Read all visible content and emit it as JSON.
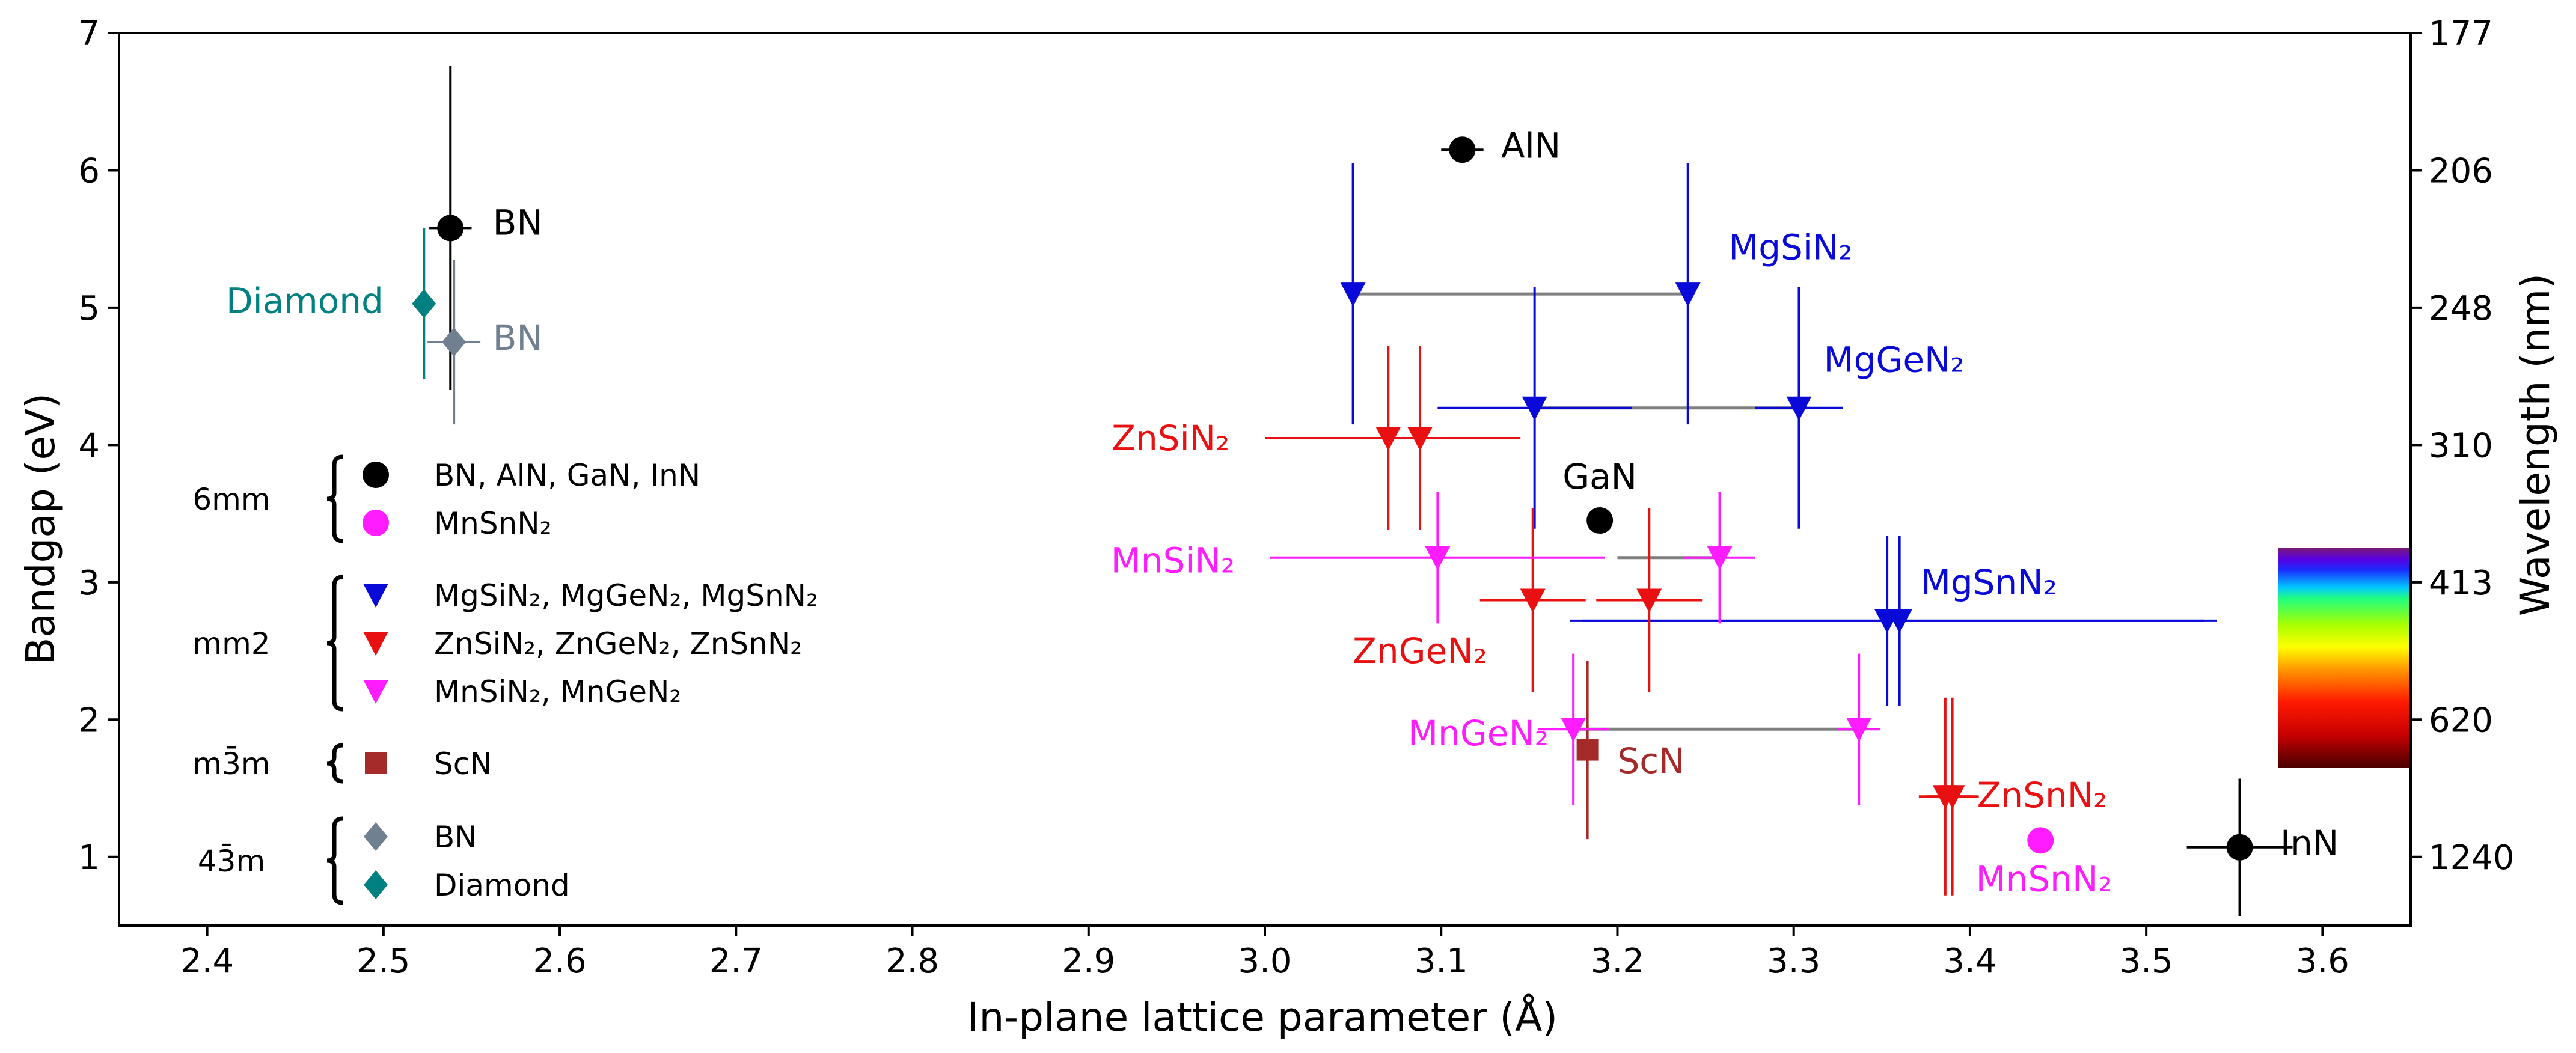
{
  "chart_data": {
    "type": "scatter",
    "xlabel": "In-plane lattice parameter (Å)",
    "ylabel": "Bandgap (eV)",
    "y2label": "Wavelength (nm)",
    "xlim": [
      2.35,
      3.65
    ],
    "ylim": [
      0.5,
      7.0
    ],
    "xticks": [
      "2.4",
      "2.5",
      "2.6",
      "2.7",
      "2.8",
      "2.9",
      "3.0",
      "3.1",
      "3.2",
      "3.3",
      "3.4",
      "3.5",
      "3.6"
    ],
    "yticks": [
      "1",
      "2",
      "3",
      "4",
      "5",
      "6",
      "7"
    ],
    "y2ticks": [
      {
        "value": 7.0,
        "label": "177"
      },
      {
        "value": 6.0,
        "label": "206"
      },
      {
        "value": 5.0,
        "label": "248"
      },
      {
        "value": 4.0,
        "label": "310"
      },
      {
        "value": 3.0,
        "label": "413"
      },
      {
        "value": 2.0,
        "label": "620"
      },
      {
        "value": 1.0,
        "label": "1240"
      }
    ],
    "colors": {
      "black": "#000000",
      "magenta": "#ff1cff",
      "blue": "#0a0ad8",
      "red": "#e81010",
      "brown": "#a52a2a",
      "slate": "#708090",
      "teal": "#008080",
      "gray": "#7f7f7f"
    },
    "points": [
      {
        "name": "AlN",
        "x": 3.112,
        "y": 6.15,
        "xerr": 0.012,
        "yerr": 0,
        "marker": "circle",
        "color": "#000000"
      },
      {
        "name": "BN",
        "x": 2.538,
        "y": 5.58,
        "xerr": 0.012,
        "yerr": 1.18,
        "marker": "circle",
        "color": "#000000"
      },
      {
        "name": "GaN",
        "x": 3.19,
        "y": 3.45,
        "xerr": 0,
        "yerr": 0,
        "marker": "circle",
        "color": "#000000"
      },
      {
        "name": "InN",
        "x": 3.553,
        "y": 1.07,
        "xerr": 0.03,
        "yerr": 0.5,
        "marker": "circle",
        "color": "#000000"
      },
      {
        "name": "MnSnN2",
        "x": 3.44,
        "y": 1.12,
        "xerr": 0,
        "yerr": 0,
        "marker": "circle",
        "color": "#ff1cff"
      },
      {
        "name": "BN",
        "x": 2.54,
        "y": 4.75,
        "xerr": 0.015,
        "yerr": 0.6,
        "marker": "diamond",
        "color": "#708090"
      },
      {
        "name": "Diamond",
        "x": 2.523,
        "y": 5.03,
        "xerr": 0,
        "yerr": 0.55,
        "marker": "diamond",
        "color": "#008080"
      },
      {
        "name": "ScN",
        "x": 3.183,
        "y": 1.78,
        "xerr": 0,
        "yerr": 0.65,
        "marker": "square",
        "color": "#a52a2a"
      },
      {
        "name": "MgSiN2",
        "x": 3.05,
        "y": 5.1,
        "xerr": 0,
        "yerr": 0.95,
        "marker": "tri",
        "color": "#0a0ad8"
      },
      {
        "name": "MgSiN2",
        "x": 3.24,
        "y": 5.1,
        "xerr": 0,
        "yerr": 0.95,
        "marker": "tri",
        "color": "#0a0ad8"
      },
      {
        "name": "MgGeN2",
        "x": 3.153,
        "y": 4.27,
        "xerr": 0.055,
        "yerr": 0.88,
        "marker": "tri",
        "color": "#0a0ad8"
      },
      {
        "name": "MgGeN2",
        "x": 3.303,
        "y": 4.27,
        "xerr": 0.025,
        "yerr": 0.88,
        "marker": "tri",
        "color": "#0a0ad8"
      },
      {
        "name": "MgSnN2",
        "x": 3.353,
        "y": 2.72,
        "xerr": 0.18,
        "yerr": 0.62,
        "marker": "tri",
        "color": "#0a0ad8"
      },
      {
        "name": "MgSnN2",
        "x": 3.36,
        "y": 2.72,
        "xerr": 0.18,
        "yerr": 0.62,
        "marker": "tri",
        "color": "#0a0ad8"
      },
      {
        "name": "ZnSiN2",
        "x": 3.07,
        "y": 4.05,
        "xerr": 0.07,
        "yerr": 0.67,
        "marker": "tri",
        "color": "#e81010"
      },
      {
        "name": "ZnSiN2",
        "x": 3.088,
        "y": 4.05,
        "xerr": 0.057,
        "yerr": 0.67,
        "marker": "tri",
        "color": "#e81010"
      },
      {
        "name": "ZnGeN2",
        "x": 3.152,
        "y": 2.87,
        "xerr": 0.03,
        "yerr": 0.67,
        "marker": "tri",
        "color": "#e81010"
      },
      {
        "name": "ZnGeN2",
        "x": 3.218,
        "y": 2.87,
        "xerr": 0.03,
        "yerr": 0.67,
        "marker": "tri",
        "color": "#e81010"
      },
      {
        "name": "ZnSnN2",
        "x": 3.386,
        "y": 1.44,
        "xerr": 0.015,
        "yerr": 0.72,
        "marker": "tri",
        "color": "#e81010"
      },
      {
        "name": "ZnSnN2",
        "x": 3.39,
        "y": 1.44,
        "xerr": 0.015,
        "yerr": 0.72,
        "marker": "tri",
        "color": "#e81010"
      },
      {
        "name": "MnSiN2",
        "x": 3.098,
        "y": 3.18,
        "xerr": 0.095,
        "yerr": 0.48,
        "marker": "tri",
        "color": "#ff1cff"
      },
      {
        "name": "MnSiN2",
        "x": 3.258,
        "y": 3.18,
        "xerr": 0.02,
        "yerr": 0.48,
        "marker": "tri",
        "color": "#ff1cff"
      },
      {
        "name": "MnGeN2",
        "x": 3.175,
        "y": 1.93,
        "xerr": 0.02,
        "yerr": 0.55,
        "marker": "tri",
        "color": "#ff1cff"
      },
      {
        "name": "MnGeN2",
        "x": 3.337,
        "y": 1.93,
        "xerr": 0.012,
        "yerr": 0.55,
        "marker": "tri",
        "color": "#ff1cff"
      }
    ],
    "connectors": [
      {
        "x1": 3.05,
        "x2": 3.24,
        "y": 5.1
      },
      {
        "x1": 3.153,
        "x2": 3.303,
        "y": 4.27
      },
      {
        "x1": 3.175,
        "x2": 3.337,
        "y": 1.93
      },
      {
        "x1": 3.2,
        "x2": 3.258,
        "y": 3.18
      }
    ],
    "annotations": [
      {
        "text": "AlN",
        "x": 3.134,
        "y": 6.18,
        "color": "#000000",
        "anchor": "start"
      },
      {
        "text": "BN",
        "x": 2.562,
        "y": 5.62,
        "color": "#000000",
        "anchor": "start"
      },
      {
        "text": "BN",
        "x": 2.562,
        "y": 4.78,
        "color": "#708090",
        "anchor": "start"
      },
      {
        "text": "Diamond",
        "x": 2.5,
        "y": 5.05,
        "color": "#008080",
        "anchor": "end"
      },
      {
        "text": "GaN",
        "x": 3.19,
        "y": 3.77,
        "color": "#000000",
        "anchor": "middle"
      },
      {
        "text": "InN",
        "x": 3.576,
        "y": 1.1,
        "color": "#000000",
        "anchor": "start"
      },
      {
        "text": "MnSnN₂",
        "x": 3.442,
        "y": 0.84,
        "color": "#ff1cff",
        "anchor": "middle"
      },
      {
        "text": "ScN",
        "x": 3.2,
        "y": 1.7,
        "color": "#a52a2a",
        "anchor": "start"
      },
      {
        "text": "MgSiN₂",
        "x": 3.263,
        "y": 5.44,
        "color": "#0a0ad8",
        "anchor": "start"
      },
      {
        "text": "MgGeN₂",
        "x": 3.317,
        "y": 4.62,
        "color": "#0a0ad8",
        "anchor": "start"
      },
      {
        "text": "MgSnN₂",
        "x": 3.372,
        "y": 3.0,
        "color": "#0a0ad8",
        "anchor": "start"
      },
      {
        "text": "ZnSiN₂",
        "x": 2.98,
        "y": 4.05,
        "color": "#e81010",
        "anchor": "end"
      },
      {
        "text": "ZnGeN₂",
        "x": 3.088,
        "y": 2.5,
        "color": "#e81010",
        "anchor": "middle"
      },
      {
        "text": "ZnSnN₂",
        "x": 3.404,
        "y": 1.45,
        "color": "#e81010",
        "anchor": "start"
      },
      {
        "text": "MnSiN₂",
        "x": 2.983,
        "y": 3.16,
        "color": "#ff1cff",
        "anchor": "end"
      },
      {
        "text": "MnGeN₂",
        "x": 3.161,
        "y": 1.9,
        "color": "#ff1cff",
        "anchor": "end"
      }
    ],
    "legend": {
      "position": "left",
      "groups": [
        {
          "label": "6mm",
          "items": [
            {
              "marker": "circle",
              "color": "#000000",
              "label": "BN, AlN, GaN, InN"
            },
            {
              "marker": "circle",
              "color": "#ff1cff",
              "label": "MnSnN₂"
            }
          ]
        },
        {
          "label": "mm2",
          "items": [
            {
              "marker": "tri",
              "color": "#0a0ad8",
              "label": "MgSiN₂, MgGeN₂, MgSnN₂"
            },
            {
              "marker": "tri",
              "color": "#e81010",
              "label": "ZnSiN₂, ZnGeN₂, ZnSnN₂"
            },
            {
              "marker": "tri",
              "color": "#ff1cff",
              "label": "MnSiN₂, MnGeN₂"
            }
          ]
        },
        {
          "label": "m3̄m",
          "items": [
            {
              "marker": "square",
              "color": "#a52a2a",
              "label": "ScN"
            }
          ]
        },
        {
          "label": "43̄m",
          "items": [
            {
              "marker": "diamond",
              "color": "#708090",
              "label": "BN"
            },
            {
              "marker": "diamond",
              "color": "#008080",
              "label": "Diamond"
            }
          ]
        }
      ]
    },
    "colorbar": {
      "y_top": 3.25,
      "y_bottom": 1.65,
      "description": "visible spectrum"
    }
  }
}
